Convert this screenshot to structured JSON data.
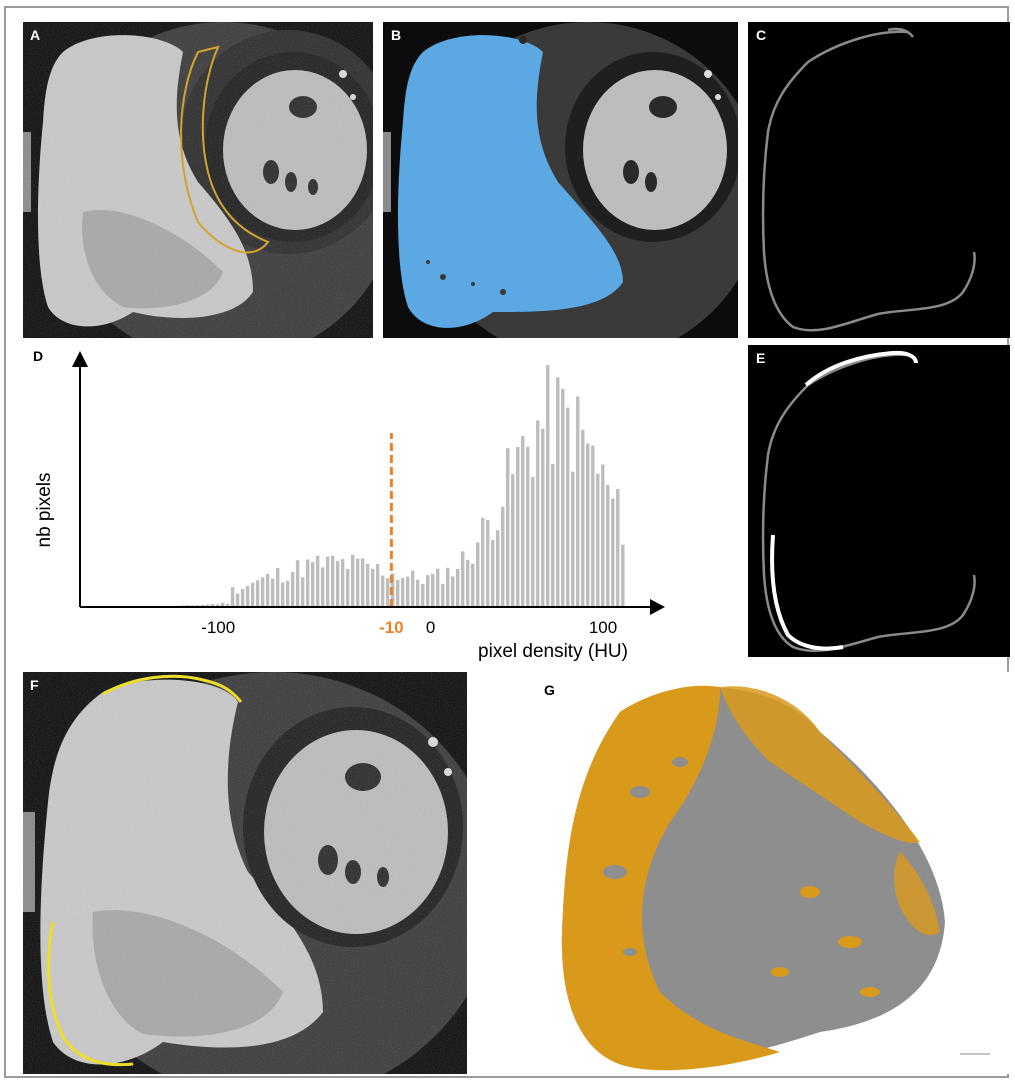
{
  "figure": {
    "panels": {
      "a": {
        "label": "A"
      },
      "b": {
        "label": "B"
      },
      "c": {
        "label": "C"
      },
      "d": {
        "label": "D"
      },
      "e": {
        "label": "E"
      },
      "f": {
        "label": "F"
      },
      "g": {
        "label": "G"
      }
    }
  },
  "colors": {
    "threshold_line": "#e8832a",
    "bars": "#bdbdbd",
    "segmentation": "#5ca8e3",
    "roi_outline": "#d4a020",
    "fat_trace": "#f2e21a",
    "fat_surface": "#d99a1c",
    "myocardium_surface": "#8e8e8e"
  },
  "chart_data": {
    "type": "bar",
    "ylabel": "nb pixels",
    "xlabel": "pixel density (HU)",
    "x_ticks": [
      {
        "value": -100,
        "label": "-100"
      },
      {
        "value": 0,
        "label": "0"
      },
      {
        "value": 100,
        "label": "100"
      }
    ],
    "threshold": {
      "value": -10,
      "label": "-10"
    },
    "xlim": [
      -155,
      155
    ],
    "ylim": [
      0,
      100
    ]
  }
}
